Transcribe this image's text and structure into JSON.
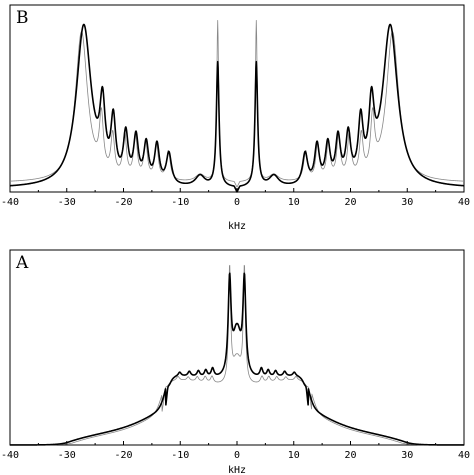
{
  "chart_data": [
    {
      "type": "line",
      "panel_label": "B",
      "xlabel": "kHz",
      "xlim": [
        -40,
        40
      ],
      "xticks": [
        -40,
        -30,
        -20,
        -10,
        0,
        10,
        20,
        30,
        40
      ],
      "yaxis_visible": false,
      "grid": false,
      "legend": "none",
      "symmetric_about_zero": true,
      "baseline": {
        "bold": 0.02,
        "thin": 0.05
      },
      "series": [
        {
          "style": "bold",
          "color": "#000000",
          "peaks": [
            [
              27,
              0.88,
              1.6
            ],
            [
              23.7,
              0.36,
              0.55
            ],
            [
              21.8,
              0.31,
              0.5
            ],
            [
              19.6,
              0.25,
              0.5
            ],
            [
              17.8,
              0.24,
              0.5
            ],
            [
              16,
              0.21,
              0.5
            ],
            [
              14.1,
              0.21,
              0.5
            ],
            [
              12,
              0.17,
              0.55
            ],
            [
              6.5,
              0.06,
              1.0
            ],
            [
              3.4,
              0.68,
              0.28
            ]
          ]
        },
        {
          "style": "thin",
          "color": "#888888",
          "peaks": [
            [
              27.4,
              0.82,
              1.3
            ],
            [
              23.9,
              0.3,
              0.42
            ],
            [
              21.9,
              0.22,
              0.38
            ],
            [
              19.8,
              0.24,
              0.38
            ],
            [
              17.9,
              0.24,
              0.38
            ],
            [
              16.1,
              0.2,
              0.38
            ],
            [
              14.2,
              0.2,
              0.38
            ],
            [
              12.1,
              0.16,
              0.42
            ],
            [
              6.5,
              0.04,
              1.0
            ],
            [
              3.4,
              0.88,
              0.2
            ]
          ]
        }
      ]
    },
    {
      "type": "line",
      "panel_label": "A",
      "xlabel": "kHz",
      "xlim": [
        -40,
        40
      ],
      "xticks": [
        -40,
        -30,
        -20,
        -10,
        0,
        10,
        20,
        30,
        40
      ],
      "yaxis_visible": false,
      "grid": false,
      "legend": "none",
      "symmetric_about_zero": true,
      "series": [
        {
          "style": "bold",
          "color": "#000000",
          "plateau": {
            "height": 0.36,
            "edge_khz": 12.6,
            "edge_width": 0.45,
            "dip_height": 0.33
          },
          "wings": {
            "end_khz": 30,
            "at_edge": 0.2,
            "at_end": 0.012
          },
          "ripples": [
            [
              12.2,
              0.04,
              0.25
            ],
            [
              10.1,
              0.02,
              0.3
            ],
            [
              8.4,
              0.025,
              0.3
            ],
            [
              6.8,
              0.03,
              0.3
            ],
            [
              5.5,
              0.035,
              0.3
            ],
            [
              4.3,
              0.045,
              0.3
            ]
          ],
          "center_peaks": [
            [
              1.3,
              0.48,
              0.3
            ],
            [
              0,
              0.28,
              0.9
            ]
          ]
        },
        {
          "style": "thin",
          "color": "#888888",
          "plateau": {
            "height": 0.34,
            "edge_khz": 13.2,
            "edge_width": 0.5,
            "dip_height": 0.3
          },
          "wings": {
            "end_khz": 29,
            "at_edge": 0.18,
            "at_end": 0.01
          },
          "ripples": [
            [
              12.6,
              0.035,
              0.25
            ],
            [
              10.4,
              0.02,
              0.3
            ],
            [
              8.6,
              0.02,
              0.3
            ],
            [
              7,
              0.025,
              0.3
            ],
            [
              5.6,
              0.03,
              0.3
            ],
            [
              4.4,
              0.035,
              0.3
            ]
          ],
          "center_peaks": [
            [
              1.3,
              0.6,
              0.22
            ],
            [
              0,
              0.16,
              0.9
            ]
          ]
        }
      ]
    }
  ]
}
